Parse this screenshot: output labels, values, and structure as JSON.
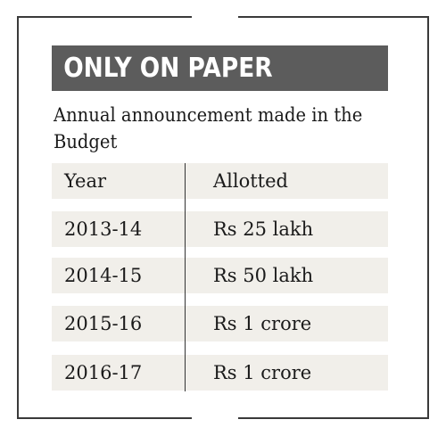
{
  "title": "ONLY ON PAPER",
  "subtitle": "Annual announcement made in the Budget",
  "chart_data": {
    "type": "table",
    "columns": [
      "Year",
      "Allotted"
    ],
    "rows": [
      [
        "2013-14",
        "Rs 25 lakh"
      ],
      [
        "2014-15",
        "Rs 50 lakh"
      ],
      [
        "2015-16",
        "Rs 1 crore"
      ],
      [
        "2016-17",
        "Rs 1 crore"
      ]
    ]
  },
  "colors": {
    "title_bar": "#5c5c5c",
    "row_background": "#f1efea",
    "frame": "#3a3a3a"
  }
}
